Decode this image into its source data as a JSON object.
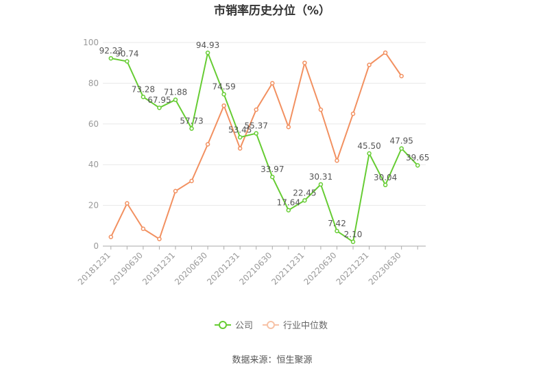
{
  "chart_data": {
    "type": "line",
    "title": "市销率历史分位（%）",
    "xlabel": "",
    "ylabel": "",
    "ylim": [
      0,
      100
    ],
    "yticks": [
      0,
      20,
      40,
      60,
      80,
      100
    ],
    "x": [
      "20181231",
      "20190331",
      "20190630",
      "20190930",
      "20191231",
      "20200331",
      "20200630",
      "20200930",
      "20201231",
      "20210331",
      "20210630",
      "20210930",
      "20211231",
      "20220331",
      "20220630",
      "20220930",
      "20221231",
      "20230331",
      "20230630",
      "20230930"
    ],
    "xtick_labels": [
      "20181231",
      "20190630",
      "20191231",
      "20200630",
      "20201231",
      "20210630",
      "20211231",
      "20220630",
      "20221231",
      "20230630"
    ],
    "series": [
      {
        "name": "公司",
        "color": "#66cc33",
        "values": [
          92.23,
          90.74,
          73.28,
          67.95,
          71.88,
          57.73,
          94.93,
          74.59,
          53.45,
          55.37,
          33.97,
          17.64,
          22.45,
          30.31,
          7.42,
          2.1,
          45.5,
          30.04,
          47.95,
          39.65
        ],
        "labels": [
          "92.23",
          "90.74",
          "73.28",
          "67.95",
          "71.88",
          "57.73",
          "94.93",
          "74.59",
          "53.45",
          "55.37",
          "33.97",
          "17.64",
          "22.45",
          "30.31",
          "7.42",
          "2.10",
          "45.50",
          "30.04",
          "47.95",
          "39.65"
        ]
      },
      {
        "name": "行业中位数",
        "color": "#f29060",
        "values": [
          4.5,
          21,
          8.5,
          3.5,
          27,
          32,
          50,
          69,
          48,
          67,
          80,
          58.5,
          90,
          67,
          42,
          65,
          89,
          95,
          83.5,
          null
        ]
      }
    ],
    "legend": {
      "position": "bottom",
      "items": [
        "公司",
        "行业中位数"
      ]
    },
    "grid": true,
    "source": "数据来源：恒生聚源"
  }
}
